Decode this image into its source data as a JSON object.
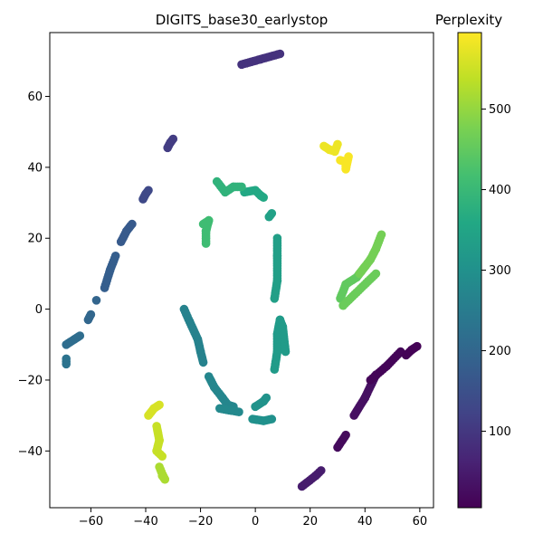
{
  "chart_data": {
    "type": "scatter",
    "title": "DIGITS_base30_earlystop",
    "xlabel": "",
    "ylabel": "",
    "xlim": [
      -75,
      65
    ],
    "ylim": [
      -56,
      78
    ],
    "x_ticks": [
      -60,
      -40,
      -20,
      0,
      20,
      40,
      60
    ],
    "y_ticks": [
      -40,
      -20,
      0,
      20,
      40,
      60
    ],
    "x_tick_labels": [
      "−60",
      "−40",
      "−20",
      "0",
      "20",
      "40",
      "60"
    ],
    "y_tick_labels": [
      "−40",
      "−20",
      "0",
      "20",
      "40",
      "60"
    ],
    "grid": false,
    "colormap": "viridis",
    "colorbar": {
      "label": "Perplexity",
      "range": [
        5,
        595
      ],
      "ticks": [
        100,
        200,
        300,
        400,
        500
      ],
      "tick_labels": [
        "100",
        "200",
        "300",
        "400",
        "500"
      ]
    },
    "segments": [
      {
        "perplexity": 50,
        "points": [
          [
            17,
            -50
          ],
          [
            22,
            -47
          ],
          [
            24,
            -45.5
          ]
        ]
      },
      {
        "perplexity": 20,
        "points": [
          [
            30,
            -39
          ],
          [
            33,
            -35.5
          ]
        ]
      },
      {
        "perplexity": 30,
        "points": [
          [
            36,
            -30
          ],
          [
            40,
            -25
          ],
          [
            44,
            -18.5
          ]
        ]
      },
      {
        "perplexity": 12,
        "points": [
          [
            42,
            -20
          ],
          [
            48,
            -16
          ],
          [
            53,
            -12
          ]
        ]
      },
      {
        "perplexity": 8,
        "points": [
          [
            55,
            -13
          ],
          [
            57,
            -11.5
          ],
          [
            59,
            -10.5
          ]
        ]
      },
      {
        "perplexity": 90,
        "points": [
          [
            -5,
            69
          ],
          [
            2,
            70.5
          ],
          [
            9,
            72
          ]
        ]
      },
      {
        "perplexity": 110,
        "points": [
          [
            -32,
            45.5
          ],
          [
            -31,
            47
          ],
          [
            -30,
            48
          ]
        ]
      },
      {
        "perplexity": 135,
        "points": [
          [
            -41,
            31
          ],
          [
            -40,
            32.5
          ],
          [
            -39,
            33.5
          ]
        ]
      },
      {
        "perplexity": 170,
        "points": [
          [
            -49,
            19
          ],
          [
            -47,
            22
          ],
          [
            -45,
            24
          ]
        ]
      },
      {
        "perplexity": 180,
        "points": [
          [
            -55,
            6
          ],
          [
            -53,
            11
          ],
          [
            -51,
            15
          ]
        ]
      },
      {
        "perplexity": 200,
        "points": [
          [
            -61,
            -3
          ],
          [
            -60,
            -1.5
          ]
        ]
      },
      {
        "perplexity": 195,
        "points": [
          [
            -58,
            2.5
          ]
        ]
      },
      {
        "perplexity": 215,
        "points": [
          [
            -69,
            -10
          ],
          [
            -66,
            -8.5
          ],
          [
            -64,
            -7.5
          ]
        ]
      },
      {
        "perplexity": 230,
        "points": [
          [
            -69,
            -15.5
          ],
          [
            -69,
            -14
          ]
        ]
      },
      {
        "perplexity": 265,
        "points": [
          [
            -26,
            0
          ],
          [
            -24,
            -3.5
          ],
          [
            -21,
            -8.5
          ],
          [
            -20,
            -12
          ],
          [
            -19,
            -15
          ]
        ]
      },
      {
        "perplexity": 275,
        "points": [
          [
            -17,
            -19
          ],
          [
            -15,
            -22
          ],
          [
            -12,
            -25
          ],
          [
            -10,
            -27
          ],
          [
            -8,
            -27.5
          ]
        ]
      },
      {
        "perplexity": 280,
        "points": [
          [
            -13,
            -28
          ],
          [
            -6,
            -29
          ]
        ]
      },
      {
        "perplexity": 300,
        "points": [
          [
            -1,
            -31
          ],
          [
            3,
            -31.5
          ],
          [
            6,
            -31
          ]
        ]
      },
      {
        "perplexity": 305,
        "points": [
          [
            0,
            -27.5
          ],
          [
            3,
            -26
          ],
          [
            4,
            -25
          ]
        ]
      },
      {
        "perplexity": 325,
        "points": [
          [
            7,
            -17
          ],
          [
            8,
            -12
          ],
          [
            8,
            -7
          ],
          [
            9,
            -3
          ],
          [
            10,
            -5
          ],
          [
            11,
            -12
          ]
        ]
      },
      {
        "perplexity": 335,
        "points": [
          [
            7,
            3
          ],
          [
            8,
            8
          ],
          [
            8,
            15
          ],
          [
            8,
            20
          ]
        ]
      },
      {
        "perplexity": 340,
        "points": [
          [
            5,
            26
          ],
          [
            6,
            27
          ]
        ]
      },
      {
        "perplexity": 360,
        "points": [
          [
            -4,
            33
          ],
          [
            0,
            33.5
          ],
          [
            2,
            32
          ],
          [
            3,
            31.5
          ]
        ]
      },
      {
        "perplexity": 385,
        "points": [
          [
            -14,
            36
          ],
          [
            -11,
            33
          ],
          [
            -8,
            34.5
          ],
          [
            -5,
            34.5
          ]
        ]
      },
      {
        "perplexity": 410,
        "points": [
          [
            -18,
            18.5
          ],
          [
            -18,
            22
          ],
          [
            -17,
            25
          ],
          [
            -19,
            24
          ]
        ]
      },
      {
        "perplexity": 450,
        "points": [
          [
            31,
            3
          ],
          [
            33,
            7
          ],
          [
            37,
            9
          ],
          [
            40,
            12
          ]
        ]
      },
      {
        "perplexity": 470,
        "points": [
          [
            38,
            10
          ],
          [
            42,
            14
          ],
          [
            44,
            17
          ],
          [
            46,
            21
          ]
        ]
      },
      {
        "perplexity": 460,
        "points": [
          [
            44,
            10
          ],
          [
            32,
            1
          ]
        ]
      },
      {
        "perplexity": 560,
        "points": [
          [
            -39,
            -30
          ],
          [
            -37,
            -28
          ],
          [
            -35,
            -27
          ]
        ]
      },
      {
        "perplexity": 545,
        "points": [
          [
            -36,
            -33
          ],
          [
            -35,
            -37
          ],
          [
            -36,
            -40
          ],
          [
            -34,
            -41.5
          ]
        ]
      },
      {
        "perplexity": 520,
        "points": [
          [
            -35,
            -44.5
          ],
          [
            -34,
            -46.5
          ],
          [
            -33,
            -48
          ],
          [
            -34,
            -47
          ]
        ]
      },
      {
        "perplexity": 580,
        "points": [
          [
            25,
            46
          ],
          [
            27,
            45
          ],
          [
            29,
            44.5
          ],
          [
            30,
            46.5
          ]
        ]
      },
      {
        "perplexity": 590,
        "points": [
          [
            31,
            42
          ],
          [
            33,
            41.5
          ],
          [
            33,
            39.5
          ],
          [
            34,
            43
          ]
        ]
      }
    ]
  }
}
